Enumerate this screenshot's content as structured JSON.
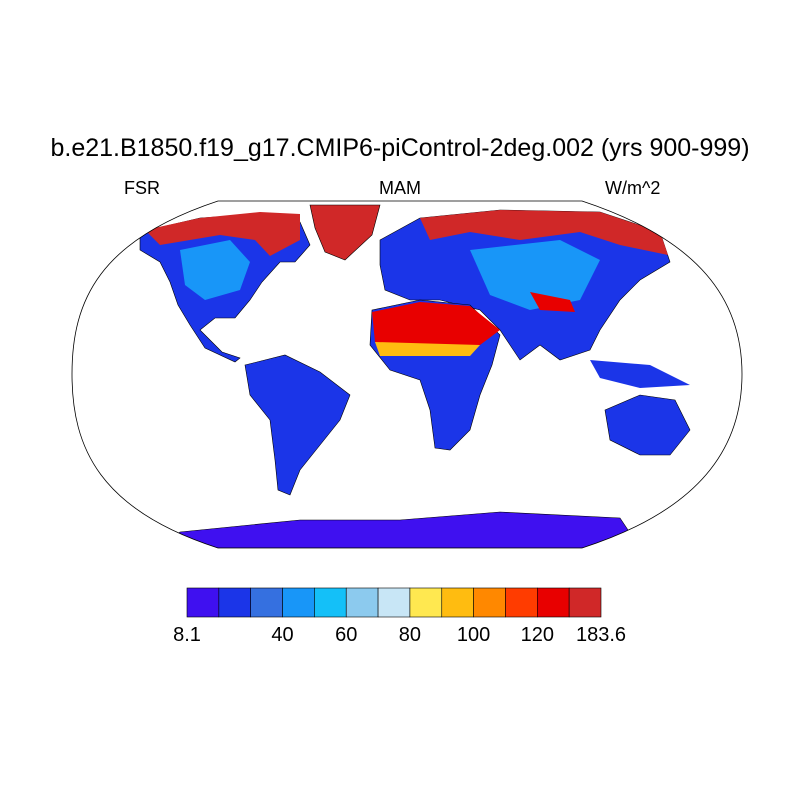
{
  "title": "b.e21.B1850.f19_g17.CMIP6-piControl-2deg.002 (yrs 900-999)",
  "left_string": "FSR",
  "center_string": "MAM",
  "right_string": "W/m^2",
  "chart_data": {
    "type": "heatmap",
    "projection": "robinson",
    "variable": "FSR",
    "season": "MAM",
    "units": "W/m^2",
    "colorbar": {
      "colors": [
        "#3f10f0",
        "#1b35e8",
        "#3570e0",
        "#1896f8",
        "#14c0f8",
        "#8ccaee",
        "#c8e6f6",
        "#ffe850",
        "#ffbc10",
        "#ff8800",
        "#ff3c00",
        "#e80000",
        "#d02828"
      ],
      "labels": [
        "8.1",
        "40",
        "60",
        "80",
        "100",
        "120",
        "183.6"
      ],
      "min": 8.1,
      "max": 183.6
    }
  }
}
